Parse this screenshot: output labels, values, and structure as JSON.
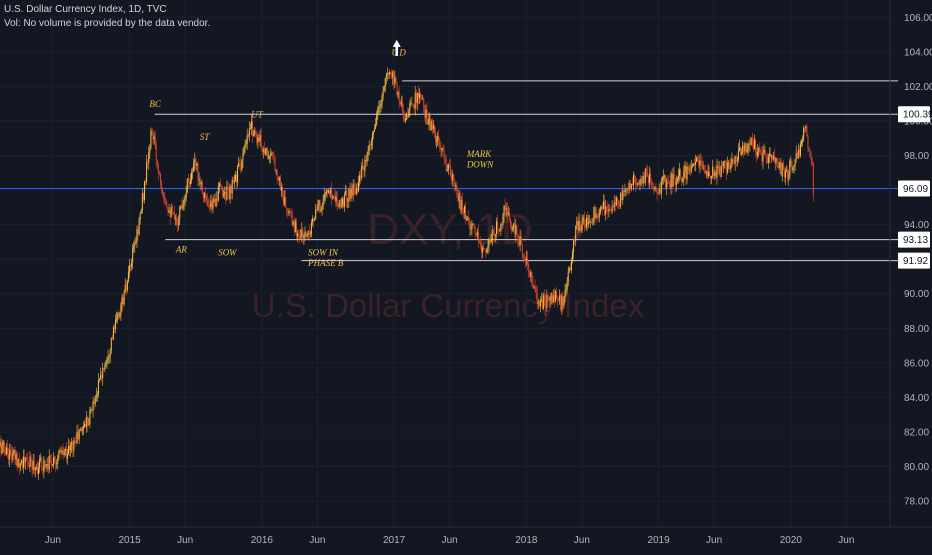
{
  "header": {
    "title": "U.S. Dollar Currency Index, 1D, TVC",
    "volume_note": "Vol: No volume is provided by the data vendor."
  },
  "watermark": {
    "symbol": "DXY, 1D",
    "name": "U.S. Dollar Currency Index"
  },
  "colors": {
    "background": "#131722",
    "up_candle": "#f5c242",
    "down_candle": "#e0452e",
    "level_line": "#cfd2da",
    "current_price_line": "#2962ff",
    "annotation": "#f0c24a"
  },
  "chart_data": {
    "type": "candlestick",
    "symbol": "DXY",
    "interval": "1D",
    "source": "TVC",
    "ylim": [
      76.5,
      107
    ],
    "y_ticks": [
      78,
      80,
      82,
      84,
      86,
      88,
      90,
      92,
      94,
      96,
      98,
      100,
      102,
      104,
      106
    ],
    "x_ticks": [
      {
        "label": "Jun",
        "t": 2014.42
      },
      {
        "label": "2015",
        "t": 2015.0
      },
      {
        "label": "Jun",
        "t": 2015.42
      },
      {
        "label": "2016",
        "t": 2016.0
      },
      {
        "label": "Jun",
        "t": 2016.42
      },
      {
        "label": "2017",
        "t": 2017.0
      },
      {
        "label": "Jun",
        "t": 2017.42
      },
      {
        "label": "2018",
        "t": 2018.0
      },
      {
        "label": "Jun",
        "t": 2018.42
      },
      {
        "label": "2019",
        "t": 2019.0
      },
      {
        "label": "Jun",
        "t": 2019.42
      },
      {
        "label": "2020",
        "t": 2020.0
      },
      {
        "label": "Jun",
        "t": 2020.42
      }
    ],
    "xlim": [
      2014.02,
      2020.75
    ],
    "price_path": [
      [
        2014.02,
        81.2
      ],
      [
        2014.15,
        80.4
      ],
      [
        2014.3,
        80.0
      ],
      [
        2014.42,
        80.4
      ],
      [
        2014.55,
        81.0
      ],
      [
        2014.7,
        83.0
      ],
      [
        2014.85,
        87.0
      ],
      [
        2014.98,
        90.5
      ],
      [
        2015.08,
        94.5
      ],
      [
        2015.17,
        99.5
      ],
      [
        2015.21,
        97.5
      ],
      [
        2015.27,
        95.5
      ],
      [
        2015.35,
        94.0
      ],
      [
        2015.44,
        96.5
      ],
      [
        2015.5,
        97.5
      ],
      [
        2015.6,
        94.8
      ],
      [
        2015.68,
        96.0
      ],
      [
        2015.76,
        95.8
      ],
      [
        2015.86,
        98.0
      ],
      [
        2015.92,
        99.7
      ],
      [
        2016.0,
        98.6
      ],
      [
        2016.1,
        97.5
      ],
      [
        2016.18,
        95.0
      ],
      [
        2016.27,
        93.5
      ],
      [
        2016.33,
        93.3
      ],
      [
        2016.42,
        94.8
      ],
      [
        2016.5,
        96.0
      ],
      [
        2016.6,
        95.3
      ],
      [
        2016.72,
        96.3
      ],
      [
        2016.8,
        97.8
      ],
      [
        2016.88,
        100.5
      ],
      [
        2016.96,
        103.0
      ],
      [
        2017.0,
        102.5
      ],
      [
        2017.08,
        100.2
      ],
      [
        2017.18,
        101.5
      ],
      [
        2017.3,
        99.3
      ],
      [
        2017.42,
        97.0
      ],
      [
        2017.5,
        95.2
      ],
      [
        2017.6,
        93.6
      ],
      [
        2017.68,
        92.5
      ],
      [
        2017.76,
        93.5
      ],
      [
        2017.84,
        94.8
      ],
      [
        2017.92,
        93.5
      ],
      [
        2018.0,
        92.0
      ],
      [
        2018.06,
        90.0
      ],
      [
        2018.12,
        89.5
      ],
      [
        2018.2,
        89.8
      ],
      [
        2018.28,
        89.4
      ],
      [
        2018.33,
        91.5
      ],
      [
        2018.38,
        93.8
      ],
      [
        2018.5,
        94.6
      ],
      [
        2018.6,
        95.0
      ],
      [
        2018.7,
        95.3
      ],
      [
        2018.8,
        96.5
      ],
      [
        2018.9,
        96.8
      ],
      [
        2019.0,
        96.2
      ],
      [
        2019.1,
        96.6
      ],
      [
        2019.2,
        97.0
      ],
      [
        2019.3,
        97.6
      ],
      [
        2019.4,
        97.0
      ],
      [
        2019.5,
        97.3
      ],
      [
        2019.6,
        98.2
      ],
      [
        2019.7,
        98.8
      ],
      [
        2019.78,
        98.0
      ],
      [
        2019.88,
        97.6
      ],
      [
        2019.96,
        96.9
      ],
      [
        2020.03,
        97.6
      ],
      [
        2020.11,
        99.5
      ],
      [
        2020.16,
        97.5
      ],
      [
        2020.17,
        96.09
      ]
    ],
    "horizontal_levels": [
      {
        "label": "100.39",
        "value": 100.39,
        "x_start": 2015.19,
        "tag": true
      },
      {
        "label": "",
        "value": 102.32,
        "x_start": 2017.06,
        "tag": false
      },
      {
        "label": "93.13",
        "value": 93.13,
        "x_start": 2015.27,
        "tag": true
      },
      {
        "label": "91.92",
        "value": 91.92,
        "x_start": 2016.3,
        "tag": true
      }
    ],
    "current_price": {
      "label": "96.09",
      "value": 96.09
    },
    "annotations": [
      {
        "text": "BC",
        "t": 2015.15,
        "y": 100.8
      },
      {
        "text": "AR",
        "t": 2015.35,
        "y": 92.4
      },
      {
        "text": "ST",
        "t": 2015.53,
        "y": 98.9
      },
      {
        "text": "SOW",
        "t": 2015.67,
        "y": 92.2
      },
      {
        "text": "UT",
        "t": 2015.92,
        "y": 100.2
      },
      {
        "text": "SOW IN",
        "t": 2016.35,
        "y": 92.2
      },
      {
        "text": "PHASE B",
        "t": 2016.35,
        "y": 91.6
      },
      {
        "text": "U",
        "t": 2016.98,
        "y": 103.8
      },
      {
        "text": "D",
        "t": 2017.04,
        "y": 103.8
      },
      {
        "text": "MARK",
        "t": 2017.55,
        "y": 97.9
      },
      {
        "text": "DOWN",
        "t": 2017.55,
        "y": 97.3
      }
    ],
    "up_arrow": {
      "t": 2017.02,
      "y": 104.0
    }
  }
}
